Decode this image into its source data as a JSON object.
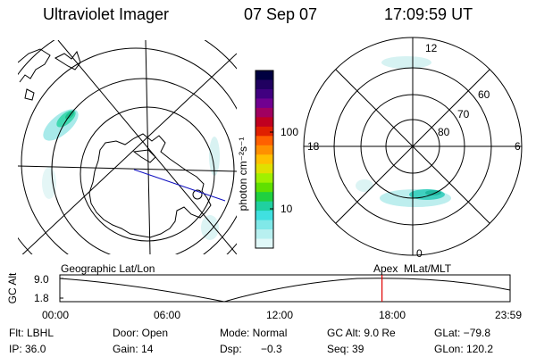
{
  "header": {
    "instrument": "Ultraviolet Imager",
    "date": "07 Sep 07",
    "time": "17:09:59 UT"
  },
  "colorbar": {
    "label": "photon cm⁻²s⁻¹",
    "ticks": [
      "100",
      "10"
    ],
    "colors": [
      "#000040",
      "#200060",
      "#400080",
      "#700090",
      "#a00060",
      "#c00020",
      "#e02000",
      "#ff6000",
      "#ff9000",
      "#ffc000",
      "#e0e000",
      "#a0f000",
      "#60e000",
      "#20d040",
      "#20d0a0",
      "#40e0e0",
      "#80e8e8",
      "#b8f0f0",
      "#e0f8f8"
    ]
  },
  "polar_plot": {
    "mlt_labels": {
      "top": "12",
      "left": "18",
      "right": "6",
      "bottom": "0"
    },
    "lat_labels": [
      "60",
      "70",
      "80"
    ]
  },
  "timeline": {
    "left_title": "Geographic Lat/Lon",
    "right_title": "Apex  MLat/MLT",
    "axis_label": "GC Alt",
    "y_ticks": [
      "9.0",
      "1.8"
    ],
    "x_ticks": [
      "00:00",
      "06:00",
      "12:00",
      "18:00",
      "23:59"
    ],
    "current_time_hours": 17.17
  },
  "footer": {
    "row1": {
      "filter": "Flt: LBHL",
      "door": "Door: Open",
      "mode": "Mode: Normal",
      "gc_alt": "GC Alt: 9.0 Re",
      "glat": "GLat: −79.8"
    },
    "row2": {
      "ip": "IP: 36.0",
      "gain": "Gain: 14",
      "dsp_label": "Dsp:",
      "dsp_value": "−0.3",
      "seq": "Seq: 39",
      "glon": "GLon: 120.2"
    }
  }
}
